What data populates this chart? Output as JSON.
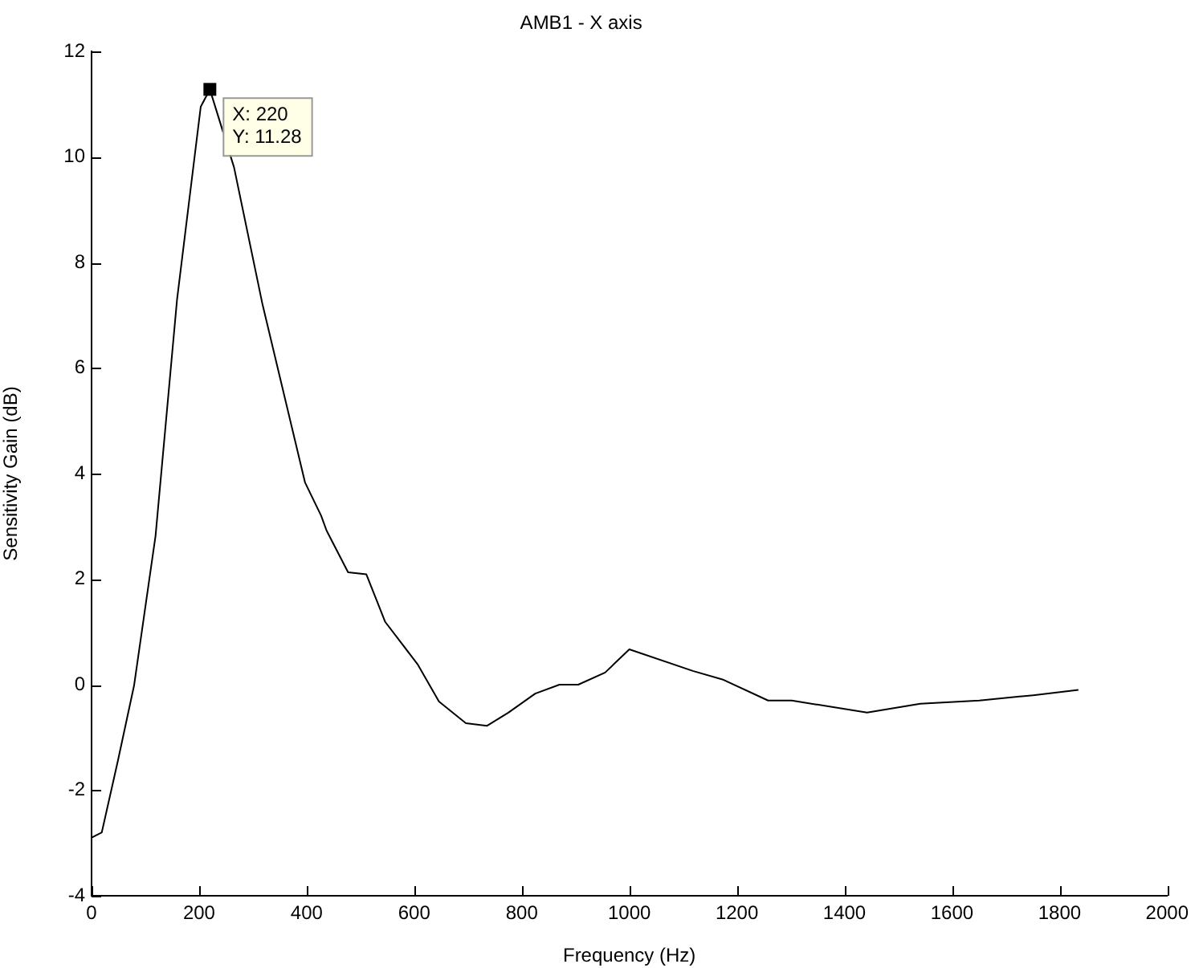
{
  "chart_data": {
    "type": "line",
    "title": "AMB1 - X axis",
    "xlabel": "Frequency (Hz)",
    "ylabel": "Sensitivity Gain (dB)",
    "x": [
      0,
      19,
      49,
      79,
      119,
      159,
      203,
      220,
      265,
      318,
      397,
      427,
      437,
      477,
      511,
      546,
      606,
      646,
      696,
      735,
      775,
      825,
      870,
      905,
      955,
      1000,
      1118,
      1173,
      1258,
      1302,
      1442,
      1541,
      1651,
      1751,
      1835
    ],
    "series": [
      {
        "color": "#000000",
        "values": [
          -2.9,
          -2.8,
          -1.44,
          -0.02,
          2.82,
          7.3,
          10.95,
          11.28,
          9.8,
          7.2,
          3.83,
          3.2,
          2.92,
          2.13,
          2.09,
          1.19,
          0.39,
          -0.32,
          -0.73,
          -0.78,
          -0.53,
          -0.17,
          0,
          0,
          0.23,
          0.67,
          0.26,
          0.1,
          -0.3,
          -0.3,
          -0.53,
          -0.36,
          -0.3,
          -0.2,
          -0.1
        ]
      }
    ],
    "xlim": [
      0,
      2000
    ],
    "xticks": [
      0,
      200,
      400,
      600,
      800,
      1000,
      1200,
      1400,
      1600,
      1800,
      2000
    ],
    "ylim": [
      -4,
      12
    ],
    "yticks": [
      -4,
      -2,
      0,
      2,
      4,
      6,
      8,
      10,
      12
    ],
    "grid": false,
    "legend": false,
    "marker": "none",
    "line_style": "solid",
    "annotations": [
      {
        "text": "X: 220\nY: 11.28",
        "x": 220,
        "y": 11.28
      }
    ]
  }
}
